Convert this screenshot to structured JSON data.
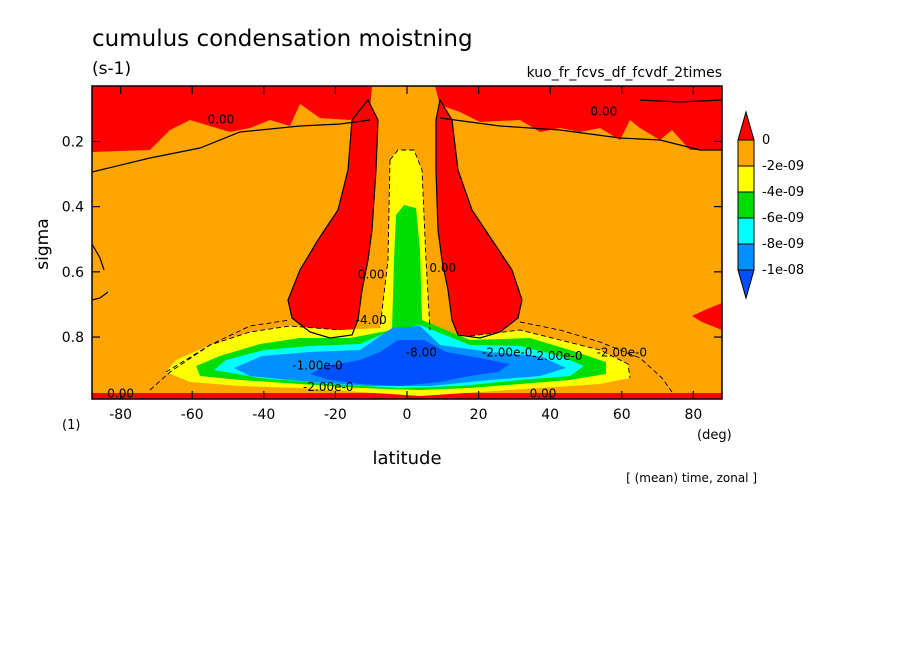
{
  "chart_data": {
    "type": "heatmap",
    "title": "cumulus condensation moistning",
    "units": "(s-1)",
    "experiment": "kuo_fr_fcvs_df_fcvdf_2times",
    "xlabel": "latitude",
    "x_unit": "(deg)",
    "ylabel": "sigma",
    "y_unit": "(1)",
    "averaging_note": "[ (mean) time, zonal ]",
    "xlim": [
      -88,
      88
    ],
    "ylim": [
      0.03,
      0.99
    ],
    "y_inverted": true,
    "x_ticks": [
      "-80",
      "-60",
      "-40",
      "-20",
      "0",
      "20",
      "40",
      "60",
      "80"
    ],
    "x_tick_values": [
      -80,
      -60,
      -40,
      -20,
      0,
      20,
      40,
      60,
      80
    ],
    "y_ticks": [
      "0.2",
      "0.4",
      "0.6",
      "0.8"
    ],
    "y_tick_values": [
      0.2,
      0.4,
      0.6,
      0.8
    ],
    "colorbar": {
      "labels": [
        "0",
        "-2e-09",
        "-4e-09",
        "-6e-09",
        "-8e-09",
        "-1e-08"
      ],
      "colors": [
        "#ff0000",
        "#ffa500",
        "#ffff00",
        "#00dd00",
        "#00ffff",
        "#0090ff",
        "#0050ff"
      ]
    },
    "contour_labels": [
      {
        "text": "0.00",
        "lat": -52,
        "sigma": 0.145
      },
      {
        "text": "0.00",
        "lat": 55,
        "sigma": 0.12
      },
      {
        "text": "0.00",
        "lat": -80,
        "sigma": 0.985
      },
      {
        "text": "0.00",
        "lat": 38,
        "sigma": 0.985
      },
      {
        "text": "0.00",
        "lat": -10,
        "sigma": 0.62
      },
      {
        "text": "0.00",
        "lat": 10,
        "sigma": 0.6
      },
      {
        "text": "-2.00e-0",
        "lat": 60,
        "sigma": 0.86
      },
      {
        "text": "-2.00e-0",
        "lat": -22,
        "sigma": 0.965
      },
      {
        "text": "-1.00e-0",
        "lat": -25,
        "sigma": 0.9
      },
      {
        "text": "-8.00",
        "lat": 4,
        "sigma": 0.86
      },
      {
        "text": "-4.00",
        "lat": -10,
        "sigma": 0.76
      },
      {
        "text": "-2.00e-0",
        "lat": 28,
        "sigma": 0.86
      },
      {
        "text": "-2.00e-0",
        "lat": 42,
        "sigma": 0.87
      }
    ]
  }
}
